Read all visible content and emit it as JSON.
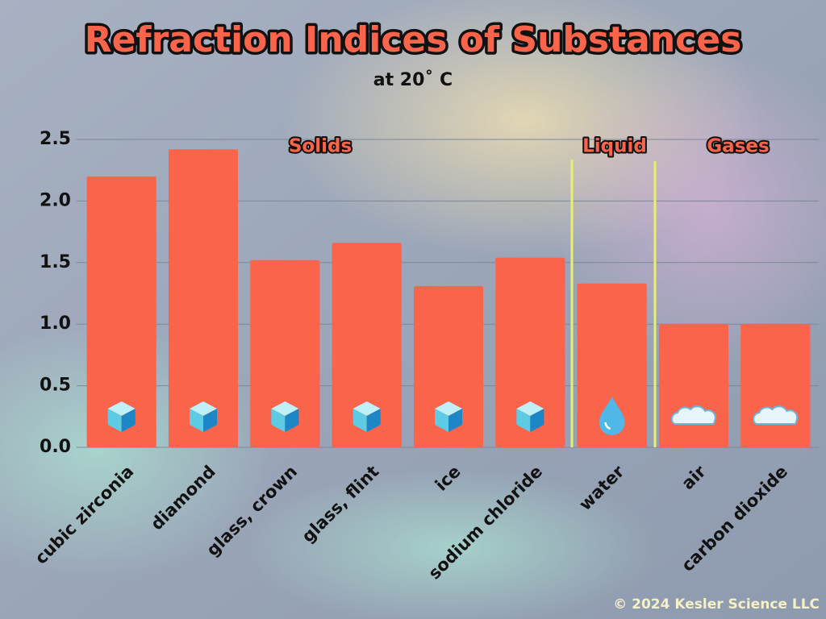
{
  "chart_data": {
    "type": "bar",
    "title": "Refraction Indices of Substances",
    "subtitle": "at 20˚ C",
    "categories": [
      "cubic zirconia",
      "diamond",
      "glass, crown",
      "glass, flint",
      "ice",
      "sodium chloride",
      "water",
      "air",
      "carbon dioxide"
    ],
    "values": [
      2.2,
      2.42,
      1.52,
      1.66,
      1.31,
      1.54,
      1.33,
      1.0,
      1.0
    ],
    "color": "#f9644a",
    "ylim": [
      0,
      2.5
    ],
    "yticks": [
      {
        "value": 0,
        "label": "0.0"
      },
      0.5,
      {
        "value": 1,
        "label": "1.0"
      },
      1.5,
      {
        "value": 2,
        "label": "2.0"
      },
      2.5
    ],
    "grid": true,
    "annotations": [
      "Solids",
      "Liquid",
      "Gases"
    ]
  },
  "footer": "© 2024 Kesler Science LLC"
}
